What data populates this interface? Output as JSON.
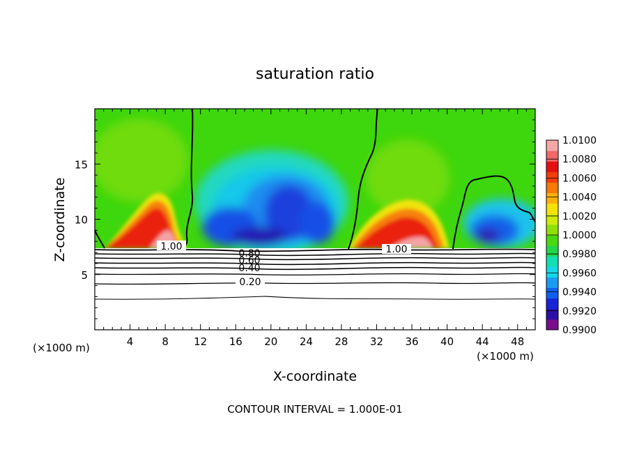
{
  "chart_data": {
    "type": "heatmap",
    "title": "saturation ratio",
    "xlabel": "X-coordinate",
    "ylabel": "Z-coordinate",
    "x_unit_left": "(×1000 m)",
    "x_unit_right": "(×1000 m)",
    "xlim": [
      0,
      50
    ],
    "ylim": [
      0,
      20
    ],
    "x_ticks": [
      4,
      8,
      12,
      16,
      20,
      24,
      28,
      32,
      36,
      40,
      44,
      48
    ],
    "y_ticks": [
      5,
      10,
      15
    ],
    "colorbar": {
      "labels": [
        "1.0100",
        "1.0080",
        "1.0060",
        "1.0040",
        "1.0020",
        "1.0000",
        "0.9980",
        "0.9960",
        "0.9940",
        "0.9920",
        "0.9900"
      ],
      "min": 0.99,
      "max": 1.01,
      "colors": [
        "#7a0c8c",
        "#2c0fa8",
        "#1626d6",
        "#1060f0",
        "#1a9cf2",
        "#14d8e8",
        "#12e0b4",
        "#22d64a",
        "#48da10",
        "#8ee008",
        "#cfea08",
        "#f4e208",
        "#fcb008",
        "#f67a08",
        "#f23e0a",
        "#e41010",
        "#f06868",
        "#f6a6a6"
      ]
    },
    "contour_labels": [
      "1.00",
      "0.80",
      "0.60",
      "0.40",
      "0.20",
      "1.00"
    ],
    "contour_interval_text": "CONTOUR INTERVAL = 1.000E-01"
  }
}
